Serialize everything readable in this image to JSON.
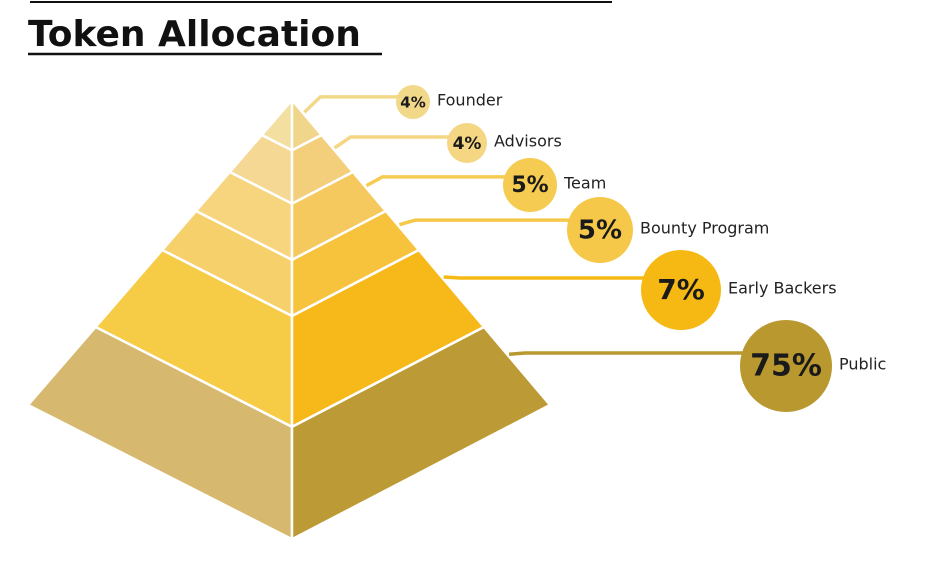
{
  "chart_data": {
    "type": "pyramid",
    "title": "Token Allocation",
    "categories": [
      "Founder",
      "Advisors",
      "Team",
      "Bounty Program",
      "Early Backers",
      "Public"
    ],
    "values": [
      4,
      4,
      5,
      5,
      7,
      75
    ],
    "value_labels": [
      "4%",
      "4%",
      "5%",
      "5%",
      "7%",
      "75%"
    ],
    "colors": [
      "#f2d98a",
      "#f5d683",
      "#f5cb52",
      "#f6c84a",
      "#f6b914",
      "#b8982f"
    ]
  }
}
